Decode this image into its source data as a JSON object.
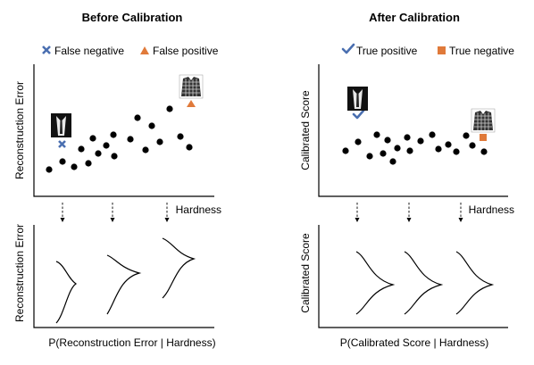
{
  "left": {
    "title": "Before Calibration",
    "legend": [
      {
        "label": "False negative",
        "marker": "x-mark-icon",
        "color": "#4a6fb0"
      },
      {
        "label": "False positive",
        "marker": "triangle-icon",
        "color": "#e07a3a"
      }
    ],
    "top_ylabel": "Reconstruction Error",
    "top_xlabel": "Hardness",
    "bottom_ylabel": "Reconstruction Error",
    "bottom_caption": "P(Reconstruction Error | Hardness)"
  },
  "right": {
    "title": "After Calibration",
    "legend": [
      {
        "label": "True positive",
        "marker": "check-mark-icon",
        "color": "#4a6fb0"
      },
      {
        "label": "True negative",
        "marker": "square-icon",
        "color": "#e07a3a"
      }
    ],
    "top_ylabel": "Calibrated Score",
    "top_xlabel": "Hardness",
    "bottom_ylabel": "Calibrated Score",
    "bottom_caption": "P(Calibrated Score | Hardness)"
  },
  "colors": {
    "dots": "#000000",
    "blue": "#4a6fb0",
    "orange": "#e07a3a"
  }
}
